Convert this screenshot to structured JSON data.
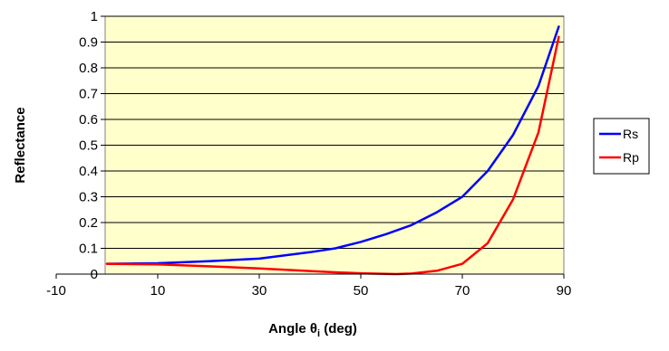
{
  "chart_data": {
    "type": "line",
    "xlabel": "Angle θ",
    "xlabel_subscript": "i",
    "xlabel_suffix": " (deg)",
    "ylabel": "Reflectance",
    "xlim": [
      -10,
      90
    ],
    "ylim": [
      0,
      1
    ],
    "x_ticks": [
      -10,
      10,
      30,
      50,
      70,
      90
    ],
    "x_tick_labels": [
      "-10",
      "10",
      "30",
      "50",
      "70",
      "90"
    ],
    "y_ticks": [
      0,
      0.1,
      0.2,
      0.3,
      0.4,
      0.5,
      0.6,
      0.7,
      0.8,
      0.9,
      1
    ],
    "y_tick_labels": [
      "0",
      "0.1",
      "0.2",
      "0.3",
      "0.4",
      "0.5",
      "0.6",
      "0.7",
      "0.8",
      "0.9",
      "1"
    ],
    "grid": "horizontal",
    "plot_background": "#ffffcc",
    "legend_position": "right",
    "series": [
      {
        "name": "Rs",
        "color": "#0000ff",
        "x": [
          0,
          10,
          20,
          30,
          40,
          45,
          50,
          55,
          60,
          65,
          70,
          75,
          80,
          85,
          89
        ],
        "y": [
          0.04,
          0.042,
          0.05,
          0.06,
          0.085,
          0.1,
          0.125,
          0.155,
          0.19,
          0.24,
          0.3,
          0.4,
          0.54,
          0.73,
          0.96
        ]
      },
      {
        "name": "Rp",
        "color": "#ff0000",
        "x": [
          0,
          10,
          20,
          30,
          40,
          45,
          50,
          55,
          57,
          60,
          65,
          70,
          75,
          80,
          85,
          89
        ],
        "y": [
          0.04,
          0.038,
          0.03,
          0.022,
          0.012,
          0.007,
          0.003,
          0.001,
          0.0,
          0.002,
          0.013,
          0.04,
          0.12,
          0.29,
          0.55,
          0.92
        ]
      }
    ]
  }
}
